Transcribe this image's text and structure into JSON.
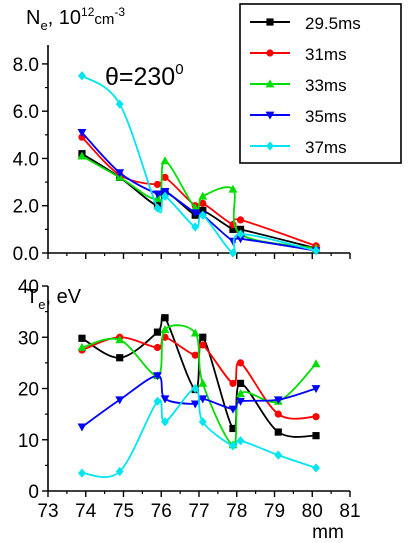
{
  "chart_data": [
    {
      "type": "line",
      "panel": "top",
      "ylabel": {
        "base": "N",
        "sub": "e",
        "mid": ", 10",
        "sup": "12",
        "unit": "cm",
        "unit_sup": "-3"
      },
      "annotation": {
        "text": "θ=230",
        "sup": "0"
      },
      "xlim": [
        73,
        81
      ],
      "ylim": [
        0,
        8.8
      ],
      "yticks": [
        0,
        2,
        4,
        6,
        8
      ],
      "ytick_labels": [
        "0.0",
        "2.0",
        "4.0",
        "6.0",
        "8.0"
      ],
      "series": [
        {
          "name": "29.5ms",
          "color": "#000000",
          "marker": "square",
          "x": [
            73.9,
            74.9,
            75.9,
            76.1,
            76.9,
            77.1,
            77.9,
            78.1,
            80.1
          ],
          "y": [
            4.2,
            3.2,
            2.0,
            2.6,
            1.6,
            1.8,
            1.0,
            1.0,
            0.2
          ]
        },
        {
          "name": "31ms",
          "color": "#ff0000",
          "marker": "circle",
          "x": [
            73.9,
            74.9,
            75.9,
            76.1,
            76.9,
            77.1,
            77.9,
            78.1,
            80.1
          ],
          "y": [
            4.9,
            3.3,
            2.9,
            3.2,
            2.0,
            2.1,
            1.2,
            1.4,
            0.3
          ]
        },
        {
          "name": "33ms",
          "color": "#00dd00",
          "marker": "triangle-up",
          "x": [
            73.9,
            74.9,
            75.9,
            76.1,
            76.9,
            77.1,
            77.9,
            78.1,
            80.1
          ],
          "y": [
            4.1,
            3.2,
            2.3,
            3.9,
            1.9,
            2.4,
            2.7,
            0.8,
            0.2
          ]
        },
        {
          "name": "35ms",
          "color": "#0000ff",
          "marker": "triangle-down",
          "x": [
            73.9,
            74.9,
            75.9,
            76.1,
            76.9,
            77.1,
            77.9,
            78.1,
            80.1
          ],
          "y": [
            5.1,
            3.4,
            2.5,
            2.6,
            1.7,
            1.6,
            0.5,
            0.6,
            0.1
          ]
        },
        {
          "name": "37ms",
          "color": "#00e5ee",
          "marker": "diamond",
          "x": [
            73.9,
            74.9,
            75.9,
            76.1,
            76.9,
            77.1,
            77.9,
            78.1,
            80.1
          ],
          "y": [
            7.5,
            6.3,
            1.9,
            2.4,
            1.1,
            1.6,
            0.0,
            0.8,
            0.1
          ]
        }
      ]
    },
    {
      "type": "line",
      "panel": "bottom",
      "ylabel": {
        "base": "T",
        "sub": "e",
        "mid": ", eV"
      },
      "xlabel": "mm",
      "xlim": [
        73,
        81
      ],
      "xticks": [
        73,
        74,
        75,
        76,
        77,
        78,
        79,
        80,
        81
      ],
      "xtick_labels": [
        "73",
        "74",
        "75",
        "76",
        "77",
        "78",
        "79",
        "80",
        "81"
      ],
      "ylim": [
        0,
        40
      ],
      "yticks": [
        0,
        10,
        20,
        30,
        40
      ],
      "ytick_labels": [
        "0",
        "10",
        "20",
        "30",
        "40"
      ],
      "series": [
        {
          "name": "29.5ms",
          "color": "#000000",
          "marker": "square",
          "x": [
            73.9,
            74.9,
            75.9,
            76.1,
            76.9,
            77.1,
            77.9,
            78.1,
            79.1,
            80.1
          ],
          "y": [
            29.8,
            26.0,
            31.0,
            33.8,
            19.8,
            30.0,
            12.2,
            21.0,
            11.5,
            10.8
          ]
        },
        {
          "name": "31ms",
          "color": "#ff0000",
          "marker": "circle",
          "x": [
            73.9,
            74.9,
            75.9,
            76.1,
            76.9,
            77.1,
            77.9,
            78.1,
            79.1,
            80.1
          ],
          "y": [
            27.5,
            30.0,
            28.0,
            30.0,
            26.5,
            28.5,
            21.0,
            25.0,
            15.0,
            14.5
          ]
        },
        {
          "name": "33ms",
          "color": "#00dd00",
          "marker": "triangle-up",
          "x": [
            73.9,
            74.9,
            75.9,
            76.1,
            76.9,
            77.1,
            77.9,
            78.1,
            79.1,
            80.1
          ],
          "y": [
            28.0,
            29.5,
            22.5,
            31.5,
            30.8,
            21.0,
            9.0,
            19.0,
            17.5,
            24.8
          ]
        },
        {
          "name": "35ms",
          "color": "#0000ff",
          "marker": "triangle-down",
          "x": [
            73.9,
            74.9,
            75.9,
            76.1,
            76.9,
            77.1,
            77.9,
            78.1,
            79.1,
            80.1
          ],
          "y": [
            12.5,
            17.8,
            22.5,
            18.0,
            17.0,
            18.0,
            16.0,
            17.5,
            17.8,
            20.0
          ]
        },
        {
          "name": "37ms",
          "color": "#00e5ee",
          "marker": "diamond",
          "x": [
            73.9,
            74.9,
            75.9,
            76.1,
            76.9,
            77.1,
            77.9,
            78.1,
            79.1,
            80.1
          ],
          "y": [
            3.5,
            3.8,
            17.5,
            13.5,
            20.0,
            13.5,
            8.8,
            9.8,
            7.0,
            4.5
          ]
        }
      ]
    }
  ]
}
